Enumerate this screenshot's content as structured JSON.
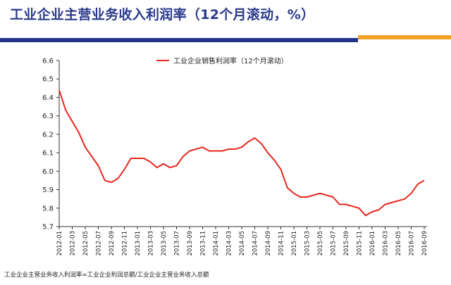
{
  "page": {
    "title": "工业企业主营业务收入利润率（12个月滚动，%）",
    "note": "工业企业主营业务收入利润率=工业企业利润总额/工业企业主营业务收入总额",
    "colors": {
      "title": "#2a3a8c",
      "band_blue": "#22358a",
      "band_orange": "#f0a028",
      "line": "#e8271f"
    }
  },
  "chart_data": {
    "type": "line",
    "legend": "工业企业销售利润率（12个月滚动）",
    "legend_position": "top-center",
    "grid": false,
    "ylim": [
      5.7,
      6.6
    ],
    "y_ticks": [
      "6.6",
      "6.5",
      "6.4",
      "6.3",
      "6.2",
      "6.1",
      "6.0",
      "5.9",
      "5.8",
      "5.7"
    ],
    "x_ticks": [
      "2012-01",
      "2012-03",
      "2012-05",
      "2012-07",
      "2012-09",
      "2012-11",
      "2013-01",
      "2013-03",
      "2013-05",
      "2013-07",
      "2013-09",
      "2013-11",
      "2014-01",
      "2014-03",
      "2014-05",
      "2014-07",
      "2014-09",
      "2014-11",
      "2015-01",
      "2015-03",
      "2015-05",
      "2015-07",
      "2015-09",
      "2015-11",
      "2016-01",
      "2016-03",
      "2016-05",
      "2016-07",
      "2016-09"
    ],
    "x": [
      "2012-01",
      "2012-02",
      "2012-03",
      "2012-04",
      "2012-05",
      "2012-06",
      "2012-07",
      "2012-08",
      "2012-09",
      "2012-10",
      "2012-11",
      "2012-12",
      "2013-01",
      "2013-02",
      "2013-03",
      "2013-04",
      "2013-05",
      "2013-06",
      "2013-07",
      "2013-08",
      "2013-09",
      "2013-10",
      "2013-11",
      "2013-12",
      "2014-01",
      "2014-02",
      "2014-03",
      "2014-04",
      "2014-05",
      "2014-06",
      "2014-07",
      "2014-08",
      "2014-09",
      "2014-10",
      "2014-11",
      "2014-12",
      "2015-01",
      "2015-02",
      "2015-03",
      "2015-04",
      "2015-05",
      "2015-06",
      "2015-07",
      "2015-08",
      "2015-09",
      "2015-10",
      "2015-11",
      "2015-12",
      "2016-01",
      "2016-02",
      "2016-03",
      "2016-04",
      "2016-05",
      "2016-06",
      "2016-07",
      "2016-08",
      "2016-09"
    ],
    "values": [
      6.44,
      6.33,
      6.27,
      6.21,
      6.13,
      6.08,
      6.03,
      5.95,
      5.94,
      5.96,
      6.01,
      6.07,
      6.07,
      6.07,
      6.05,
      6.02,
      6.04,
      6.02,
      6.03,
      6.08,
      6.11,
      6.12,
      6.13,
      6.11,
      6.11,
      6.11,
      6.12,
      6.12,
      6.13,
      6.16,
      6.18,
      6.15,
      6.1,
      6.06,
      6.01,
      5.91,
      5.88,
      5.86,
      5.86,
      5.87,
      5.88,
      5.87,
      5.86,
      5.82,
      5.82,
      5.81,
      5.8,
      5.76,
      5.78,
      5.79,
      5.82,
      5.83,
      5.84,
      5.85,
      5.88,
      5.93,
      5.95
    ]
  }
}
